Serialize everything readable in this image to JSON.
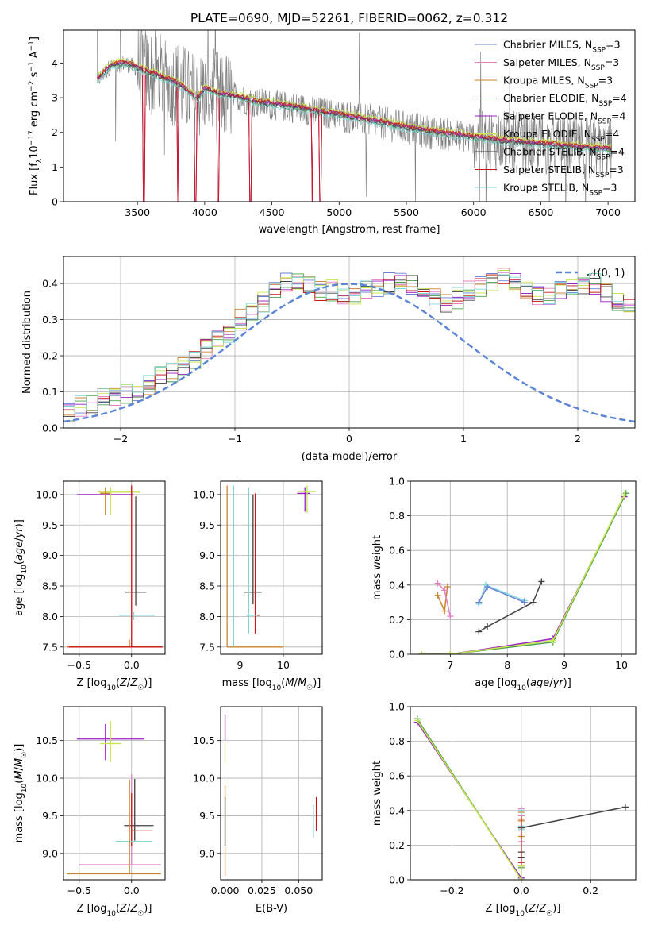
{
  "figure_title": "PLATE=0690, MJD=52261, FIBERID=0062, z=0.312",
  "legend": [
    {
      "name": "Chabrier MILES",
      "nssp": "3",
      "color": "#6a80d8"
    },
    {
      "name": "Salpeter MILES",
      "nssp": "3",
      "color": "#e57fc0"
    },
    {
      "name": "Kroupa MILES",
      "nssp": "3",
      "color": "#c8842c"
    },
    {
      "name": "Chabrier ELODIE",
      "nssp": "4",
      "color": "#4aa04a"
    },
    {
      "name": "Salpeter ELODIE",
      "nssp": "4",
      "color": "#9a1fc6"
    },
    {
      "name": "Kroupa ELODIE",
      "nssp": "4",
      "color": "#c9e64e"
    },
    {
      "name": "Chabrier STELIB",
      "nssp": "4",
      "color": "#404040"
    },
    {
      "name": "Salpeter STELIB",
      "nssp": "3",
      "color": "#cc1414"
    },
    {
      "name": "Kroupa STELIB",
      "nssp": "3",
      "color": "#7fd6d6"
    }
  ],
  "nssp_prefix": "N",
  "nssp_sub": "SSP",
  "chart_data": [
    {
      "type": "line",
      "id": "spectrum",
      "xlabel": "wavelength [Angstrom, rest frame]",
      "ylabel": {
        "pre": "Flux [f",
        "sub": "λ",
        "mid": "10",
        "sup1": "−17",
        "post": " erg cm",
        "sup2": "−2",
        "post2": " s",
        "sup3": "−1",
        "post3": " A",
        "sup4": "−1",
        "end": "]"
      },
      "xlim": [
        2950,
        7200
      ],
      "ylim": [
        0,
        4.95
      ],
      "xticks": [
        3500,
        4000,
        4500,
        5000,
        5500,
        6000,
        6500,
        7000
      ],
      "yticks": [
        0,
        1,
        2,
        3,
        4
      ],
      "data_range": [
        3200,
        7030
      ],
      "model_continuum": [
        [
          3200,
          3.5
        ],
        [
          3300,
          3.9
        ],
        [
          3400,
          4.0
        ],
        [
          3500,
          3.85
        ],
        [
          3600,
          3.7
        ],
        [
          3700,
          3.55
        ],
        [
          3800,
          3.4
        ],
        [
          3900,
          3.1
        ],
        [
          3950,
          2.95
        ],
        [
          4000,
          3.25
        ],
        [
          4100,
          3.1
        ],
        [
          4200,
          3.05
        ],
        [
          4300,
          2.95
        ],
        [
          4400,
          2.85
        ],
        [
          4500,
          2.8
        ],
        [
          4600,
          2.75
        ],
        [
          4700,
          2.7
        ],
        [
          4800,
          2.62
        ],
        [
          4900,
          2.55
        ],
        [
          5000,
          2.5
        ],
        [
          5200,
          2.35
        ],
        [
          5400,
          2.2
        ],
        [
          5600,
          2.05
        ],
        [
          5800,
          1.95
        ],
        [
          6000,
          1.85
        ],
        [
          6200,
          1.75
        ],
        [
          6400,
          1.68
        ],
        [
          6600,
          1.62
        ],
        [
          6800,
          1.55
        ],
        [
          7000,
          1.5
        ]
      ],
      "absorption_lines": [
        3550,
        3800,
        3935,
        4100,
        4340,
        4800,
        4862
      ]
    },
    {
      "type": "histogram",
      "id": "residuals",
      "xlabel": "(data-model)/error",
      "ylabel": "Normed distribution",
      "xlim": [
        -2.5,
        2.5
      ],
      "ylim": [
        0,
        0.475
      ],
      "xticks": [
        -2,
        -1,
        0,
        1,
        2
      ],
      "yticks": [
        0.0,
        0.1,
        0.2,
        0.3,
        0.4
      ],
      "bin_start": -2.5,
      "bin_width": 0.1,
      "envelope": [
        0.045,
        0.06,
        0.07,
        0.08,
        0.09,
        0.095,
        0.1,
        0.12,
        0.14,
        0.15,
        0.17,
        0.19,
        0.22,
        0.24,
        0.26,
        0.3,
        0.32,
        0.35,
        0.38,
        0.4,
        0.41,
        0.4,
        0.38,
        0.38,
        0.36,
        0.37,
        0.38,
        0.39,
        0.4,
        0.41,
        0.4,
        0.37,
        0.36,
        0.34,
        0.36,
        0.38,
        0.39,
        0.4,
        0.42,
        0.41,
        0.38,
        0.37,
        0.37,
        0.38,
        0.39,
        0.39,
        0.4,
        0.38,
        0.35,
        0.34,
        0.33,
        0.33,
        0.32,
        0.34,
        0.33,
        0.33,
        0.3,
        0.27,
        0.26,
        0.25,
        0.24,
        0.22,
        0.2,
        0.18,
        0.15,
        0.13,
        0.12,
        0.12,
        0.11,
        0.1,
        0.09,
        0.09,
        0.08,
        0.07,
        0.07,
        0.06,
        0.06,
        0.05,
        0.045,
        0.04,
        0.04,
        0.035,
        0.03,
        0.025,
        0.02,
        0.02,
        0.02,
        0.015,
        0.015,
        0.01,
        0.01,
        0.01,
        0.01,
        0.01,
        0.005,
        0.005,
        0.005,
        0.005,
        0.005,
        0.005
      ],
      "gaussian_label": "𝒩(0, 1)",
      "gaussian_color": "#5b84d6"
    },
    {
      "type": "errorbar",
      "id": "age-vs-Z",
      "xlabel": "Z [log10(Z/Z☉)]",
      "ylabel": "age  [log10(age/yr)]",
      "xlim": [
        -0.65,
        0.32
      ],
      "ylim": [
        7.38,
        10.22
      ],
      "xticks": [
        -0.5,
        0.0
      ],
      "yticks": [
        7.5,
        8.0,
        8.5,
        9.0,
        9.5,
        10.0
      ],
      "points": [
        {
          "x": -0.1,
          "y": 10.0,
          "xerr": [
            0.42,
            0.12
          ],
          "yerr": [
            0.0,
            0.0
          ],
          "color": "#9a1fc6"
        },
        {
          "x": -0.2,
          "y": 10.04,
          "xerr": [
            0.12,
            0.28
          ],
          "yerr": [
            0.37,
            0.08
          ],
          "color": "#c9e64e"
        },
        {
          "x": -0.25,
          "y": 10.02,
          "xerr": [
            0.05,
            0.05
          ],
          "yerr": [
            0.35,
            0.1
          ],
          "color": "#c8842c"
        },
        {
          "x": 0.04,
          "y": 8.4,
          "xerr": [
            0.1,
            0.1
          ],
          "yerr": [
            0.22,
            1.57
          ],
          "color": "#404040"
        },
        {
          "x": 0.02,
          "y": 8.02,
          "xerr": [
            0.14,
            0.2
          ],
          "yerr": [
            0.08,
            0.05
          ],
          "color": "#7fd6d6"
        },
        {
          "x": -0.02,
          "y": 7.5,
          "xerr": [
            0.6,
            0.3
          ],
          "yerr": [
            0.0,
            0.12
          ],
          "color": "#c8842c"
        },
        {
          "x": 0.0,
          "y": 7.5,
          "xerr": [
            0.6,
            0.3
          ],
          "yerr": [
            0.0,
            2.65
          ],
          "color": "#cc1414"
        }
      ]
    },
    {
      "type": "errorbar",
      "id": "age-vs-mass",
      "xlabel": "mass [log10(M/M☉)]",
      "ylabel": "",
      "xlim": [
        8.55,
        10.9
      ],
      "ylim": [
        7.38,
        10.22
      ],
      "xticks": [
        9,
        10
      ],
      "yticks": [
        7.5,
        8.0,
        8.5,
        9.0,
        9.5,
        10.0
      ],
      "points": [
        {
          "x": 10.5,
          "y": 10.02,
          "xerr": [
            0.18,
            0.12
          ],
          "yerr": [
            0.3,
            0.1
          ],
          "color": "#9a1fc6"
        },
        {
          "x": 10.55,
          "y": 10.05,
          "xerr": [
            0.2,
            0.2
          ],
          "yerr": [
            0.35,
            0.1
          ],
          "color": "#c9e64e"
        },
        {
          "x": 9.3,
          "y": 8.4,
          "xerr": [
            0.2,
            0.2
          ],
          "yerr": [
            0.2,
            1.6
          ],
          "color": "#404040"
        },
        {
          "x": 9.35,
          "y": 8.02,
          "xerr": [
            0.1,
            0.1
          ],
          "yerr": [
            0.3,
            2.0
          ],
          "color": "#cc1414"
        },
        {
          "x": 9.2,
          "y": 8.02,
          "xerr": [
            0.05,
            0.2
          ],
          "yerr": [
            0.3,
            2.1
          ],
          "color": "#7fd6d6"
        },
        {
          "x": 8.7,
          "y": 7.5,
          "xerr": [
            0.0,
            1.3
          ],
          "yerr": [
            0.0,
            2.65
          ],
          "color": "#c8842c"
        },
        {
          "x": 8.85,
          "y": 7.5,
          "xerr": [
            0.0,
            0.0
          ],
          "yerr": [
            0.0,
            2.65
          ],
          "color": "#7fd6d6"
        }
      ]
    },
    {
      "type": "line",
      "id": "weight-vs-age",
      "xlabel": "age  [log10(age/yr)]",
      "ylabel": "mass weight",
      "xlim": [
        6.3,
        10.25
      ],
      "ylim": [
        0,
        1.0
      ],
      "xticks": [
        7,
        8,
        9,
        10
      ],
      "yticks": [
        0.0,
        0.2,
        0.4,
        0.6,
        0.8,
        1.0
      ],
      "series": [
        {
          "color": "#c8842c",
          "points": [
            [
              6.78,
              0.34
            ],
            [
              6.9,
              0.25
            ],
            [
              6.95,
              0.39
            ]
          ]
        },
        {
          "color": "#e57fc0",
          "points": [
            [
              6.78,
              0.41
            ],
            [
              6.9,
              0.37
            ],
            [
              7.0,
              0.22
            ]
          ]
        },
        {
          "color": "#7fd6d6",
          "points": [
            [
              7.5,
              0.29
            ],
            [
              7.62,
              0.4
            ],
            [
              8.3,
              0.31
            ]
          ]
        },
        {
          "color": "#6a80d8",
          "points": [
            [
              7.5,
              0.3
            ],
            [
              7.65,
              0.39
            ],
            [
              8.3,
              0.3
            ]
          ]
        },
        {
          "color": "#404040",
          "points": [
            [
              7.5,
              0.13
            ],
            [
              7.65,
              0.16
            ],
            [
              8.45,
              0.3
            ],
            [
              8.6,
              0.42
            ]
          ]
        },
        {
          "color": "#9a1fc6",
          "points": [
            [
              6.5,
              0.0
            ],
            [
              7.0,
              0.0
            ],
            [
              8.8,
              0.09
            ],
            [
              10.05,
              0.91
            ]
          ]
        },
        {
          "color": "#4aa04a",
          "points": [
            [
              6.5,
              0.0
            ],
            [
              7.0,
              0.0
            ],
            [
              8.8,
              0.07
            ],
            [
              10.08,
              0.93
            ]
          ]
        },
        {
          "color": "#c9e64e",
          "points": [
            [
              6.5,
              0.0
            ],
            [
              7.0,
              0.0
            ],
            [
              8.8,
              0.08
            ],
            [
              10.05,
              0.92
            ]
          ]
        }
      ]
    },
    {
      "type": "errorbar",
      "id": "mass-vs-Z",
      "xlabel": "Z [log10(Z/Z☉)]",
      "ylabel": "mass [log10(M/M☉)]",
      "xlim": [
        -0.65,
        0.32
      ],
      "ylim": [
        8.65,
        10.95
      ],
      "xticks": [
        -0.5,
        0.0
      ],
      "yticks": [
        9.0,
        9.5,
        10.0,
        10.5
      ],
      "points": [
        {
          "x": -0.25,
          "y": 10.52,
          "xerr": [
            0.27,
            0.37
          ],
          "yerr": [
            0.28,
            0.2
          ],
          "color": "#9a1fc6"
        },
        {
          "x": -0.2,
          "y": 10.46,
          "xerr": [
            0.1,
            0.1
          ],
          "yerr": [
            0.25,
            0.3
          ],
          "color": "#c9e64e"
        },
        {
          "x": 0.0,
          "y": 8.85,
          "xerr": [
            0.5,
            0.28
          ],
          "yerr": [
            0.0,
            1.2
          ],
          "color": "#e57fc0"
        },
        {
          "x": 0.03,
          "y": 9.37,
          "xerr": [
            0.1,
            0.18
          ],
          "yerr": [
            0.2,
            0.62
          ],
          "color": "#404040"
        },
        {
          "x": 0.0,
          "y": 9.3,
          "xerr": [
            0.0,
            0.2
          ],
          "yerr": [
            0.2,
            0.5
          ],
          "color": "#cc1414"
        },
        {
          "x": 0.0,
          "y": 9.16,
          "xerr": [
            0.15,
            0.2
          ],
          "yerr": [
            0.0,
            0.0
          ],
          "color": "#7fd6d6"
        },
        {
          "x": -0.02,
          "y": 8.73,
          "xerr": [
            0.6,
            0.3
          ],
          "yerr": [
            0.0,
            1.25
          ],
          "color": "#c8842c"
        }
      ]
    },
    {
      "type": "errorbar",
      "id": "mass-vs-EBV",
      "xlabel": "E(B-V)",
      "ylabel": "",
      "xlim": [
        -0.003,
        0.066
      ],
      "ylim": [
        8.65,
        10.95
      ],
      "xticks": [
        0.0,
        0.025,
        0.05
      ],
      "xtick_labels": [
        "0.000",
        "0.025",
        "0.050"
      ],
      "yticks": [
        9.0,
        9.5,
        10.0,
        10.5
      ],
      "points": [
        {
          "x": 0.0,
          "y": 10.6,
          "xerr": [
            0,
            0
          ],
          "yerr": [
            0.4,
            0.25
          ],
          "color": "#c9e64e"
        },
        {
          "x": 0.0,
          "y": 10.7,
          "xerr": [
            0,
            0
          ],
          "yerr": [
            0.2,
            0.15
          ],
          "color": "#9a1fc6"
        },
        {
          "x": 0.0,
          "y": 9.4,
          "xerr": [
            0,
            0
          ],
          "yerr": [
            0.7,
            0.5
          ],
          "color": "#c8842c"
        },
        {
          "x": 0.0,
          "y": 9.4,
          "xerr": [
            0,
            0
          ],
          "yerr": [
            0.3,
            0.35
          ],
          "color": "#404040"
        },
        {
          "x": 0.062,
          "y": 9.5,
          "xerr": [
            0,
            0
          ],
          "yerr": [
            0.2,
            0.25
          ],
          "color": "#cc1414"
        },
        {
          "x": 0.06,
          "y": 9.4,
          "xerr": [
            0,
            0
          ],
          "yerr": [
            0.2,
            0.25
          ],
          "color": "#7fd6d6"
        }
      ]
    },
    {
      "type": "line",
      "id": "weight-vs-Z",
      "xlabel": "Z [log10(Z/Z☉)]",
      "ylabel": "mass weight",
      "xlim": [
        -0.32,
        0.33
      ],
      "ylim": [
        0,
        1.0
      ],
      "xticks": [
        -0.2,
        0.0,
        0.2
      ],
      "xtick_labels": [
        "−0.2",
        "0.0",
        "0.2"
      ],
      "yticks": [
        0.0,
        0.2,
        0.4,
        0.6,
        0.8,
        1.0
      ],
      "series": [
        {
          "color": "#9a1fc6",
          "points": [
            [
              -0.3,
              0.91
            ],
            [
              0.0,
              0.01
            ],
            [
              0.0,
              0.08
            ]
          ]
        },
        {
          "color": "#4aa04a",
          "points": [
            [
              -0.3,
              0.93
            ],
            [
              0.0,
              0.0
            ],
            [
              0.0,
              0.07
            ]
          ]
        },
        {
          "color": "#c9e64e",
          "points": [
            [
              -0.3,
              0.92
            ],
            [
              0.0,
              0.0
            ],
            [
              0.0,
              0.08
            ]
          ]
        },
        {
          "color": "#404040",
          "points": [
            [
              0.0,
              0.13
            ],
            [
              0.0,
              0.16
            ],
            [
              0.0,
              0.3
            ],
            [
              0.3,
              0.42
            ]
          ]
        },
        {
          "color": "#e57fc0",
          "points": [
            [
              0.0,
              0.41
            ],
            [
              0.0,
              0.37
            ],
            [
              0.0,
              0.22
            ]
          ]
        },
        {
          "color": "#c8842c",
          "points": [
            [
              0.0,
              0.34
            ],
            [
              0.0,
              0.25
            ],
            [
              0.0,
              0.39
            ]
          ]
        },
        {
          "color": "#7fd6d6",
          "points": [
            [
              0.0,
              0.29
            ],
            [
              0.0,
              0.4
            ],
            [
              0.0,
              0.31
            ]
          ]
        },
        {
          "color": "#cc1414",
          "points": [
            [
              0.0,
              0.1
            ],
            [
              0.0,
              0.35
            ]
          ]
        }
      ]
    }
  ]
}
